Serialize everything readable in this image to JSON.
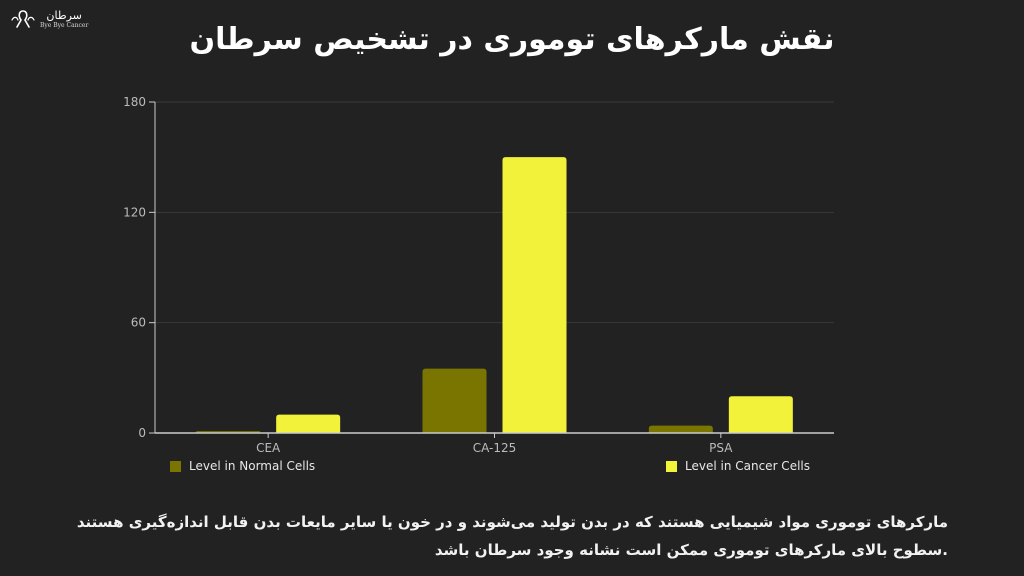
{
  "logo": {
    "name_fa": "سرطان",
    "name_en": "Bye Bye Cancer"
  },
  "title": "نقش مارکرهای توموری در تشخیص سرطان",
  "caption": {
    "line1": "مارکرهای توموری مواد شیمیایی هستند که در بدن تولید می‌شوند و در خون یا سایر مایعات بدن قابل اندازه‌گیری هستند",
    "line2": ".سطوح بالای مارکرهای توموری ممکن است نشانه وجود سرطان باشد"
  },
  "colors": {
    "background": "#222222",
    "normal": "#7a7500",
    "cancer": "#f2f23a",
    "grid": "#3a3a3a",
    "axis": "#cccccc",
    "tick_text": "#bbbbbb"
  },
  "chart_data": {
    "type": "bar",
    "title": "",
    "xlabel": "",
    "ylabel": "",
    "categories": [
      "CEA",
      "CA-125",
      "PSA"
    ],
    "series": [
      {
        "name": "Level in Normal Cells",
        "values": [
          1,
          35,
          4
        ]
      },
      {
        "name": "Level in Cancer Cells",
        "values": [
          10,
          150,
          20
        ]
      }
    ],
    "ylim": [
      0,
      180
    ],
    "yticks": [
      0,
      60,
      120,
      180
    ],
    "grid": true,
    "legend": "bottom"
  }
}
